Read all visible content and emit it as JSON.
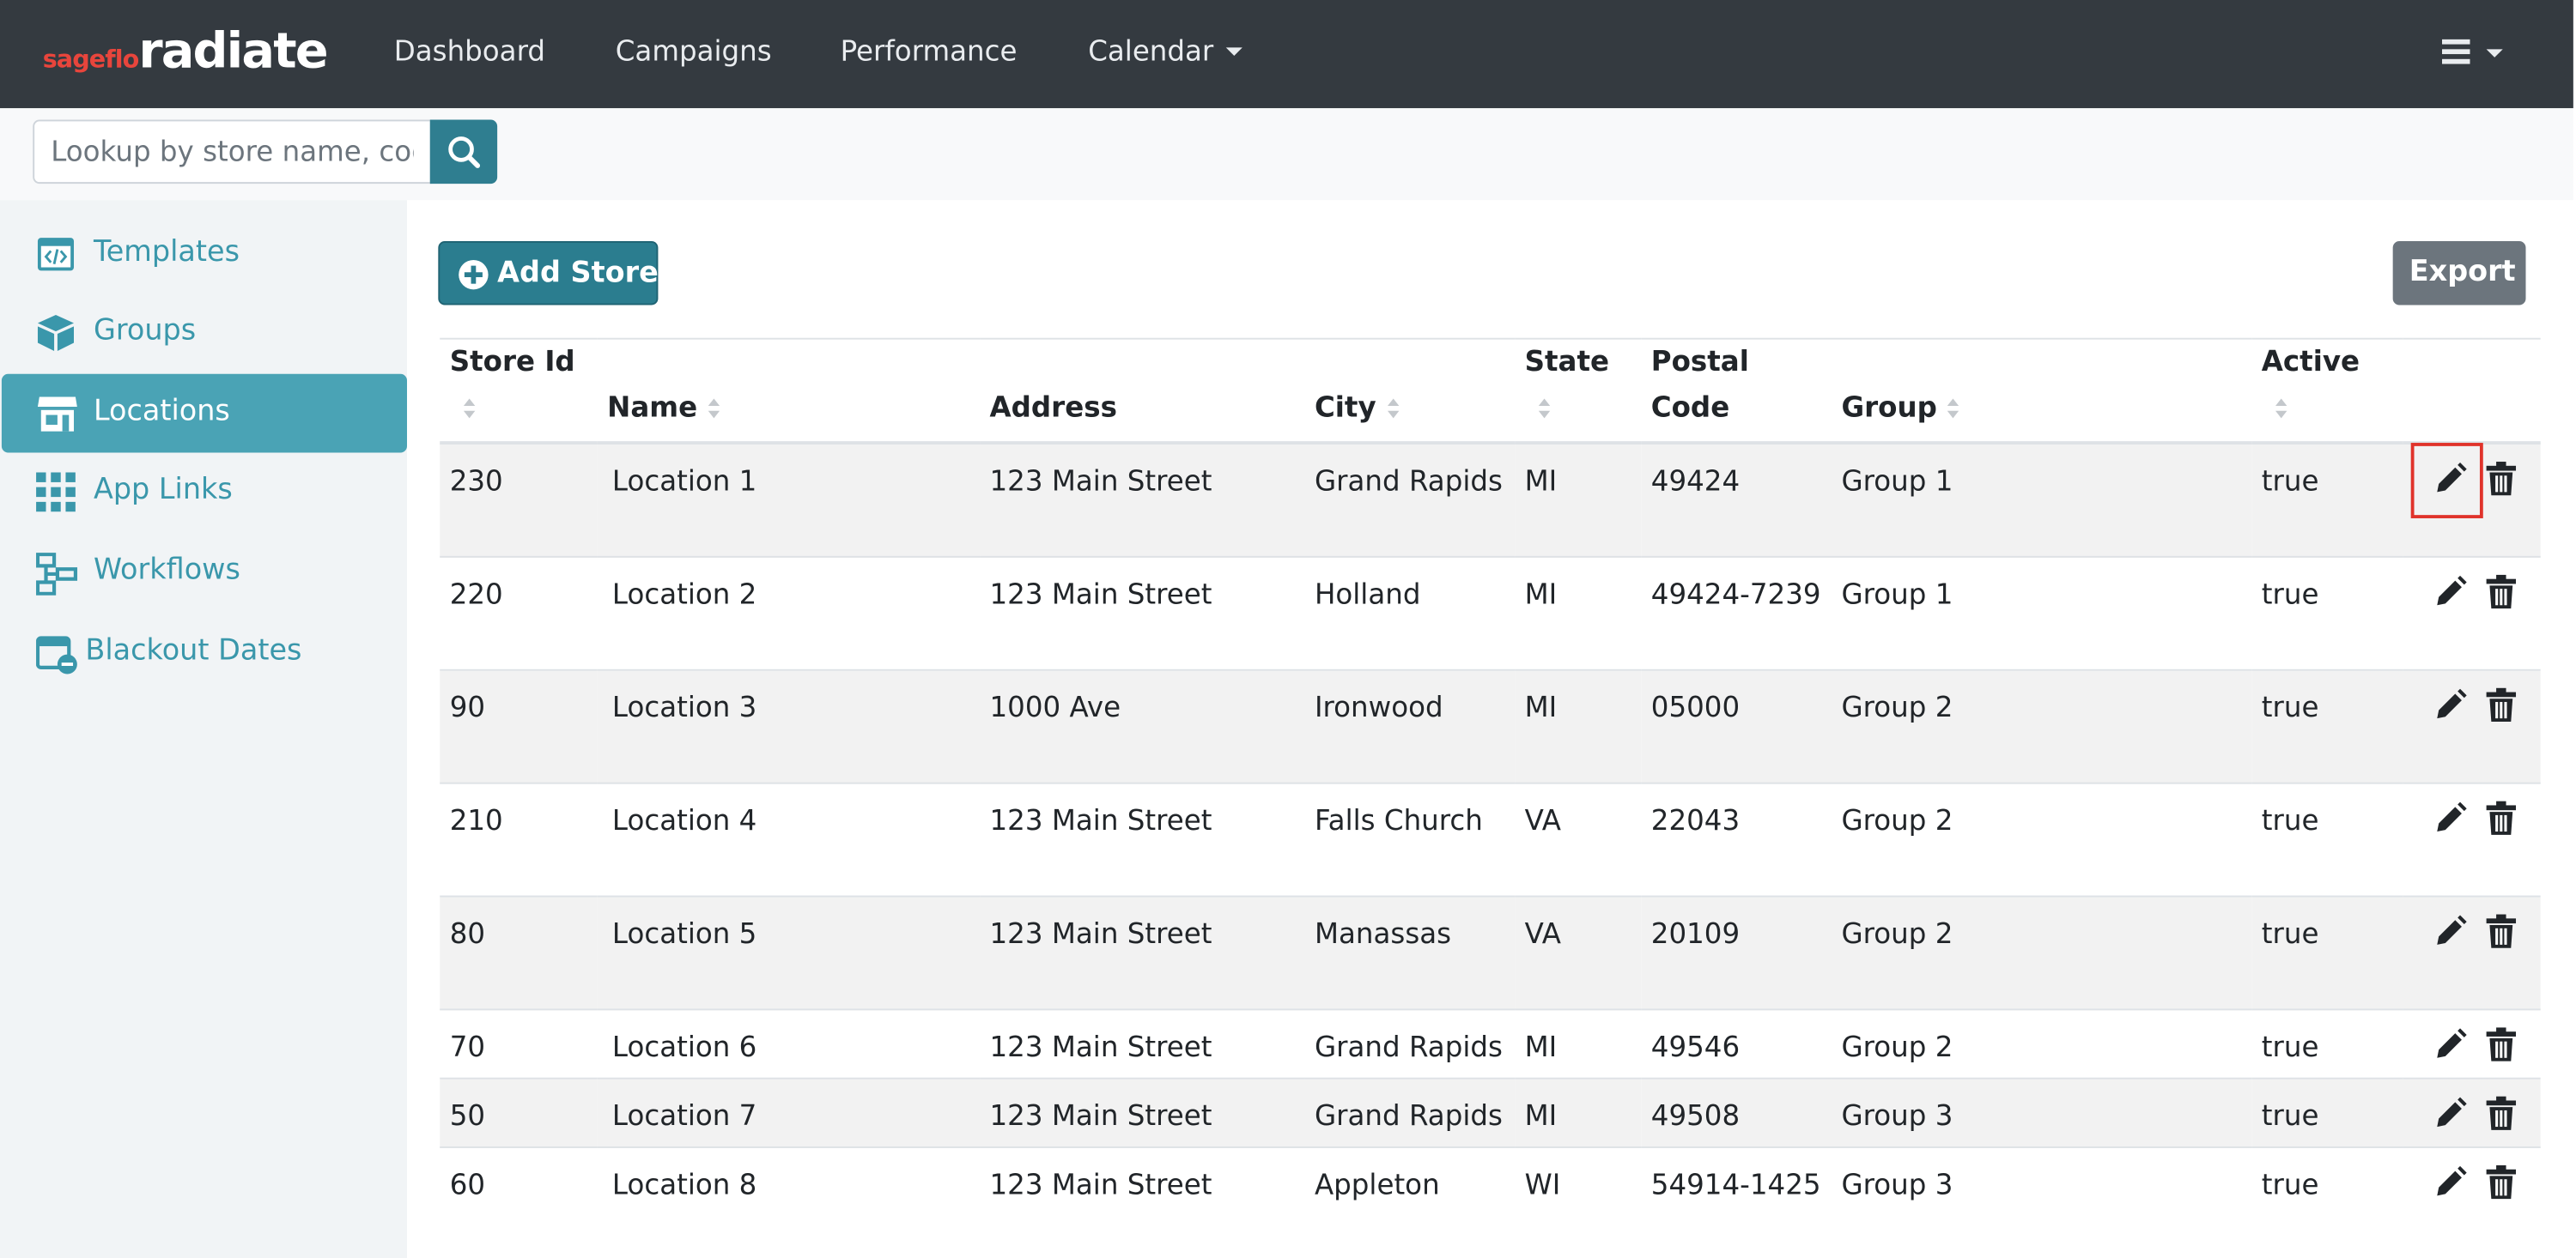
{
  "brand": {
    "prefix": "sageflo",
    "name": "radiate"
  },
  "nav": [
    "Dashboard",
    "Campaigns",
    "Performance",
    "Calendar"
  ],
  "search": {
    "placeholder": "Lookup by store name, code"
  },
  "sidebar": [
    "Templates",
    "Groups",
    "Locations",
    "App Links",
    "Workflows",
    "Blackout Dates"
  ],
  "buttons": {
    "add": "Add Store",
    "export": "Export"
  },
  "table": {
    "headers": [
      "Store Id",
      "Name",
      "Address",
      "City",
      "State",
      "Postal Code",
      "Group",
      "Active"
    ],
    "rows": [
      [
        "230",
        "Location 1",
        "123 Main Street",
        "Grand Rapids",
        "MI",
        "49424",
        "Group 1",
        "true"
      ],
      [
        "220",
        "Location 2",
        "123 Main Street",
        "Holland",
        "MI",
        "49424-7239",
        "Group 1",
        "true"
      ],
      [
        "90",
        "Location 3",
        "1000 Ave",
        "Ironwood",
        "MI",
        "05000",
        "Group 2",
        "true"
      ],
      [
        "210",
        "Location 4",
        "123 Main Street",
        "Falls Church",
        "VA",
        "22043",
        "Group 2",
        "true"
      ],
      [
        "80",
        "Location 5",
        "123 Main Street",
        "Manassas",
        "VA",
        "20109",
        "Group 2",
        "true"
      ],
      [
        "70",
        "Location 6",
        "123 Main Street",
        "Grand Rapids",
        "MI",
        "49546",
        "Group 2",
        "true"
      ],
      [
        "50",
        "Location 7",
        "123 Main Street",
        "Grand Rapids",
        "MI",
        "49508",
        "Group 3",
        "true"
      ],
      [
        "60",
        "Location 8",
        "123 Main Street",
        "Appleton",
        "WI",
        "54914-1425",
        "Group 3",
        "true"
      ]
    ]
  }
}
